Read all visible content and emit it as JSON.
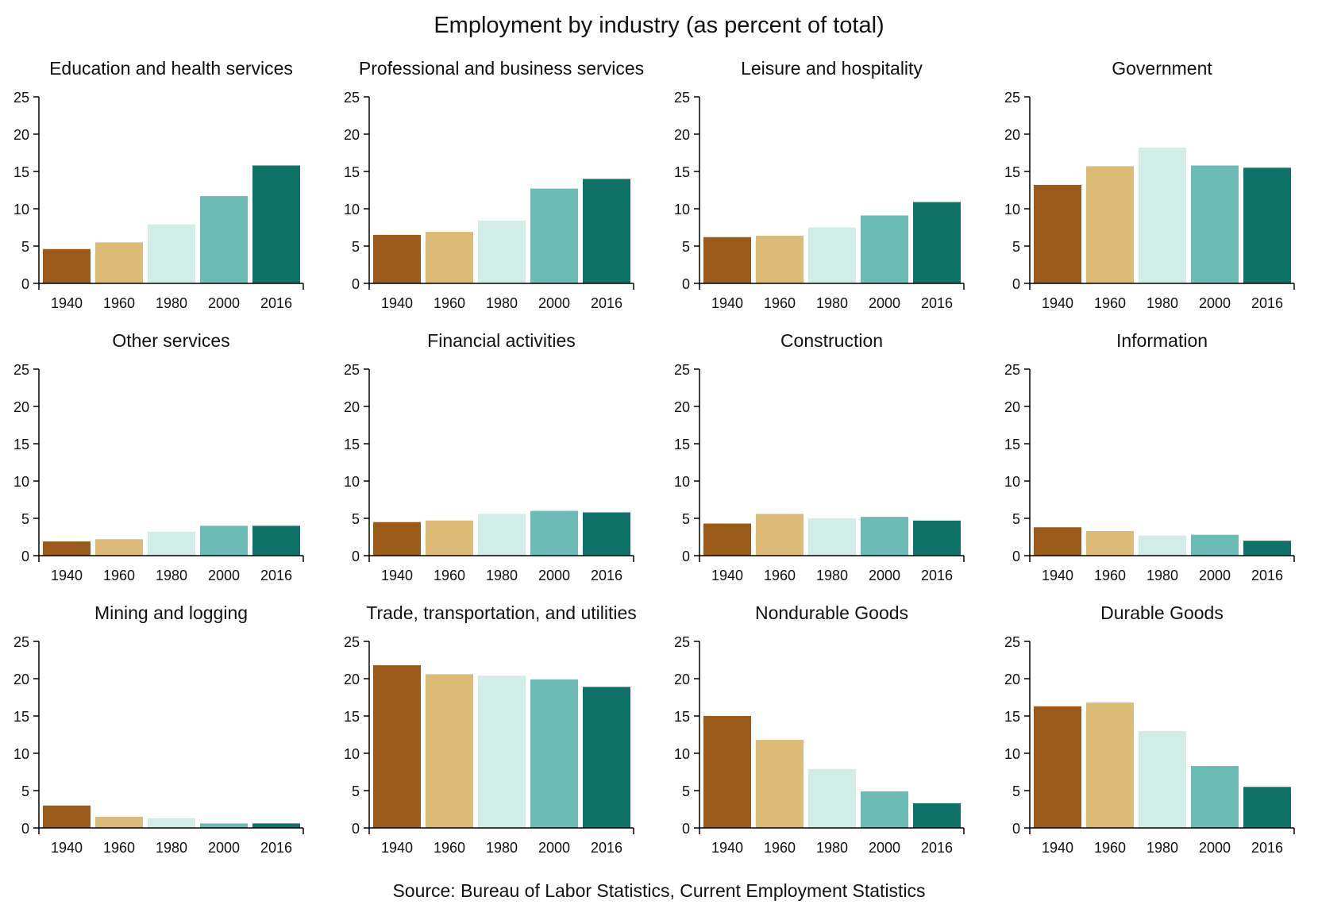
{
  "title": "Employment by industry (as percent of total)",
  "source": "Source: Bureau of Labor Statistics, Current Employment Statistics",
  "colors": {
    "1940": "#9a5b19",
    "1960": "#dcbb77",
    "1980": "#d0ede7",
    "2000": "#6bbcb5",
    "2016": "#0f7268"
  },
  "chart_data": [
    {
      "type": "bar",
      "title": "Education and health services",
      "categories": [
        "1940",
        "1960",
        "1980",
        "2000",
        "2016"
      ],
      "values": [
        4.6,
        5.5,
        7.9,
        11.7,
        15.8
      ],
      "ylim": [
        0,
        25
      ],
      "yticks": [
        0,
        5,
        10,
        15,
        20,
        25
      ]
    },
    {
      "type": "bar",
      "title": "Professional and business services",
      "categories": [
        "1940",
        "1960",
        "1980",
        "2000",
        "2016"
      ],
      "values": [
        6.5,
        6.9,
        8.4,
        12.7,
        14.0
      ],
      "ylim": [
        0,
        25
      ],
      "yticks": [
        0,
        5,
        10,
        15,
        20,
        25
      ]
    },
    {
      "type": "bar",
      "title": "Leisure and hospitality",
      "categories": [
        "1940",
        "1960",
        "1980",
        "2000",
        "2016"
      ],
      "values": [
        6.2,
        6.4,
        7.5,
        9.1,
        10.9
      ],
      "ylim": [
        0,
        25
      ],
      "yticks": [
        0,
        5,
        10,
        15,
        20,
        25
      ]
    },
    {
      "type": "bar",
      "title": "Government",
      "categories": [
        "1940",
        "1960",
        "1980",
        "2000",
        "2016"
      ],
      "values": [
        13.2,
        15.7,
        18.2,
        15.8,
        15.5
      ],
      "ylim": [
        0,
        25
      ],
      "yticks": [
        0,
        5,
        10,
        15,
        20,
        25
      ]
    },
    {
      "type": "bar",
      "title": "Other services",
      "categories": [
        "1940",
        "1960",
        "1980",
        "2000",
        "2016"
      ],
      "values": [
        1.9,
        2.2,
        3.2,
        4.0,
        4.0
      ],
      "ylim": [
        0,
        25
      ],
      "yticks": [
        0,
        5,
        10,
        15,
        20,
        25
      ]
    },
    {
      "type": "bar",
      "title": "Financial activities",
      "categories": [
        "1940",
        "1960",
        "1980",
        "2000",
        "2016"
      ],
      "values": [
        4.5,
        4.7,
        5.6,
        6.0,
        5.8
      ],
      "ylim": [
        0,
        25
      ],
      "yticks": [
        0,
        5,
        10,
        15,
        20,
        25
      ]
    },
    {
      "type": "bar",
      "title": "Construction",
      "categories": [
        "1940",
        "1960",
        "1980",
        "2000",
        "2016"
      ],
      "values": [
        4.3,
        5.6,
        5.0,
        5.2,
        4.7
      ],
      "ylim": [
        0,
        25
      ],
      "yticks": [
        0,
        5,
        10,
        15,
        20,
        25
      ]
    },
    {
      "type": "bar",
      "title": "Information",
      "categories": [
        "1940",
        "1960",
        "1980",
        "2000",
        "2016"
      ],
      "values": [
        3.8,
        3.3,
        2.7,
        2.8,
        2.0
      ],
      "ylim": [
        0,
        25
      ],
      "yticks": [
        0,
        5,
        10,
        15,
        20,
        25
      ]
    },
    {
      "type": "bar",
      "title": "Mining and logging",
      "categories": [
        "1940",
        "1960",
        "1980",
        "2000",
        "2016"
      ],
      "values": [
        3.0,
        1.5,
        1.3,
        0.6,
        0.6
      ],
      "ylim": [
        0,
        25
      ],
      "yticks": [
        0,
        5,
        10,
        15,
        20,
        25
      ]
    },
    {
      "type": "bar",
      "title": "Trade, transportation, and utilities",
      "categories": [
        "1940",
        "1960",
        "1980",
        "2000",
        "2016"
      ],
      "values": [
        21.8,
        20.6,
        20.4,
        19.9,
        18.9
      ],
      "ylim": [
        0,
        25
      ],
      "yticks": [
        0,
        5,
        10,
        15,
        20,
        25
      ]
    },
    {
      "type": "bar",
      "title": "Nondurable Goods",
      "categories": [
        "1940",
        "1960",
        "1980",
        "2000",
        "2016"
      ],
      "values": [
        15.0,
        11.8,
        7.9,
        4.9,
        3.3
      ],
      "ylim": [
        0,
        25
      ],
      "yticks": [
        0,
        5,
        10,
        15,
        20,
        25
      ]
    },
    {
      "type": "bar",
      "title": "Durable Goods",
      "categories": [
        "1940",
        "1960",
        "1980",
        "2000",
        "2016"
      ],
      "values": [
        16.3,
        16.8,
        13.0,
        8.3,
        5.5
      ],
      "ylim": [
        0,
        25
      ],
      "yticks": [
        0,
        5,
        10,
        15,
        20,
        25
      ]
    }
  ]
}
